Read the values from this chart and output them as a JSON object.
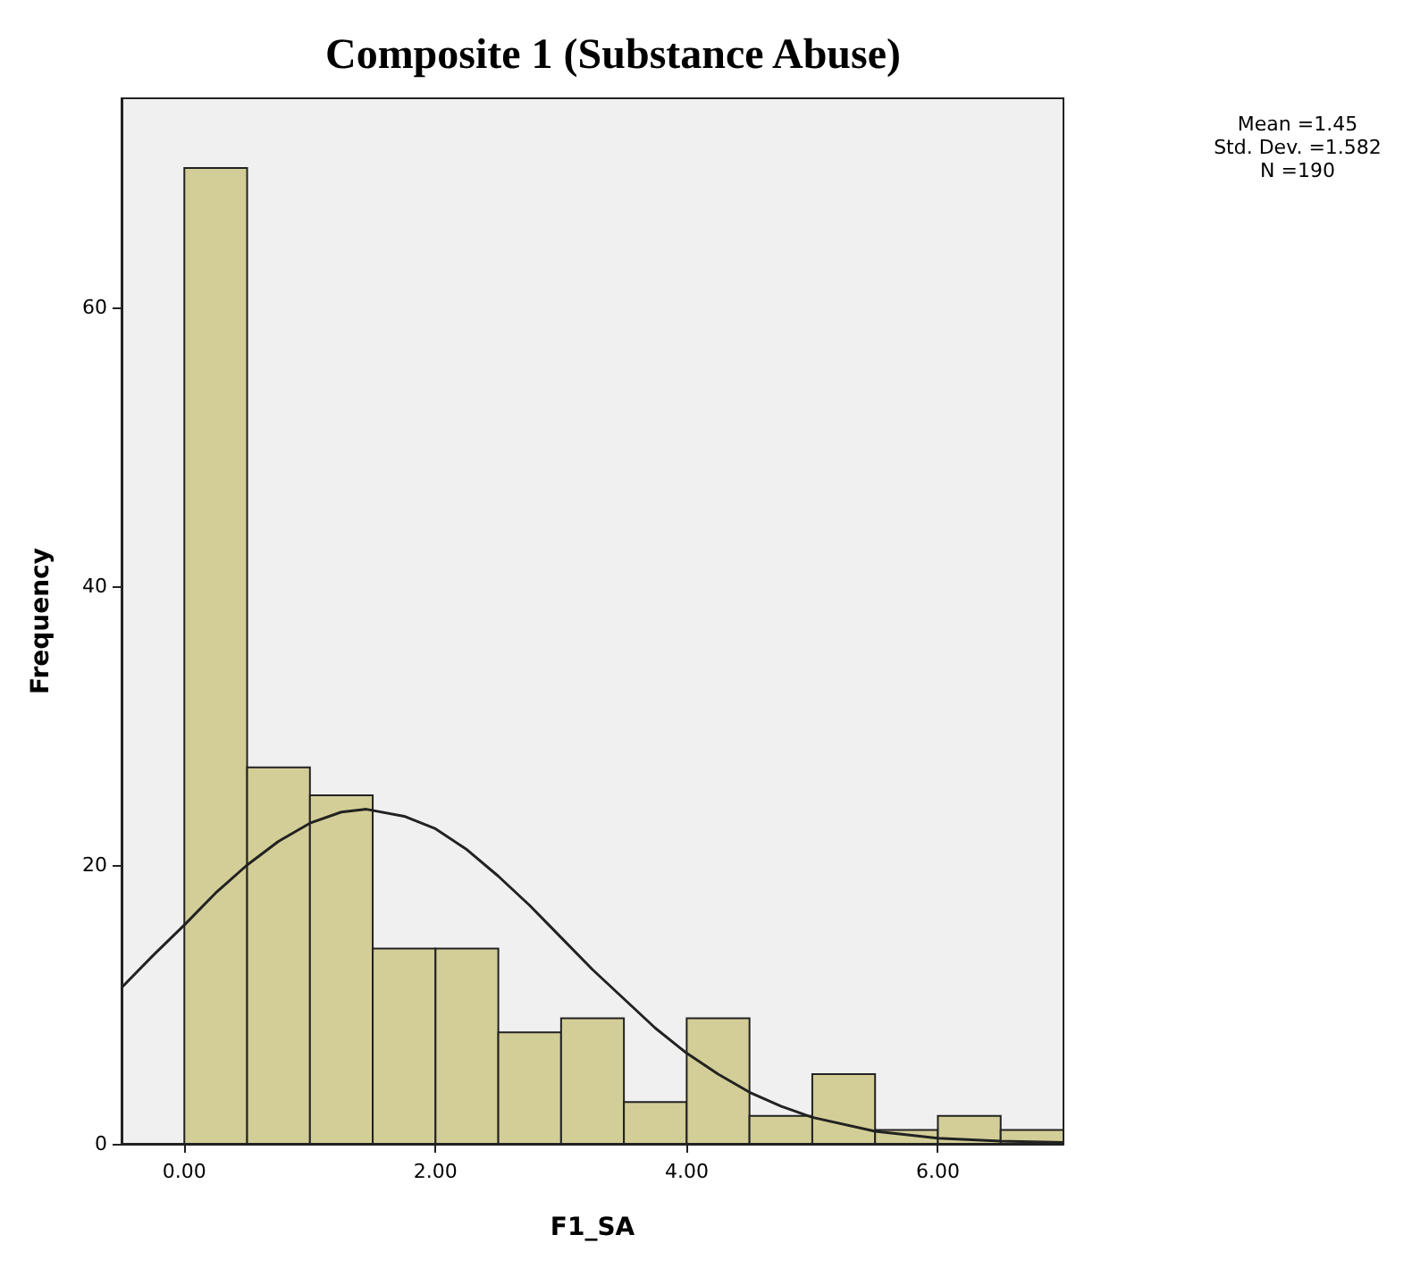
{
  "chart_data": {
    "type": "histogram",
    "title": "Composite 1 (Substance Abuse)",
    "xlabel": "F1_SA",
    "ylabel": "Frequency",
    "bins": [
      0,
      0.5,
      1,
      1.5,
      2,
      2.5,
      3,
      3.5,
      4,
      4.5,
      5,
      5.5,
      6,
      6.5,
      7
    ],
    "values": [
      70,
      27,
      25,
      14,
      14,
      8,
      9,
      3,
      9,
      2,
      5,
      1,
      2,
      1
    ],
    "color": "#d3ce97",
    "series": [
      {
        "type": "line",
        "color": "#222222",
        "x": [
          -0.5,
          -0.25,
          0,
          0.25,
          0.5,
          0.75,
          1,
          1.25,
          1.45,
          1.75,
          2,
          2.25,
          2.5,
          2.75,
          3,
          3.25,
          3.5,
          3.75,
          4,
          4.25,
          4.5,
          4.75,
          5,
          5.5,
          6,
          6.5,
          7
        ],
        "values": [
          11.2,
          13.5,
          15.7,
          18.0,
          20.0,
          21.7,
          23.0,
          23.8,
          24.0,
          23.5,
          22.6,
          21.1,
          19.2,
          17.1,
          14.8,
          12.5,
          10.4,
          8.3,
          6.5,
          5.0,
          3.7,
          2.7,
          1.9,
          0.9,
          0.4,
          0.2,
          0.1
        ]
      }
    ],
    "xlim": [
      -0.5,
      7
    ],
    "ylim": [
      0,
      75
    ],
    "xticks": [
      {
        "value": 0,
        "label": "0.00"
      },
      {
        "value": 2,
        "label": "2.00"
      },
      {
        "value": 4,
        "label": "4.00"
      },
      {
        "value": 6,
        "label": "6.00"
      }
    ],
    "yticks": [
      0,
      20,
      40,
      60
    ],
    "grid": false,
    "legend": false,
    "marker": "none",
    "annotations": [
      "Mean =1.45",
      "Std. Dev. =1.582",
      "N =190"
    ]
  }
}
